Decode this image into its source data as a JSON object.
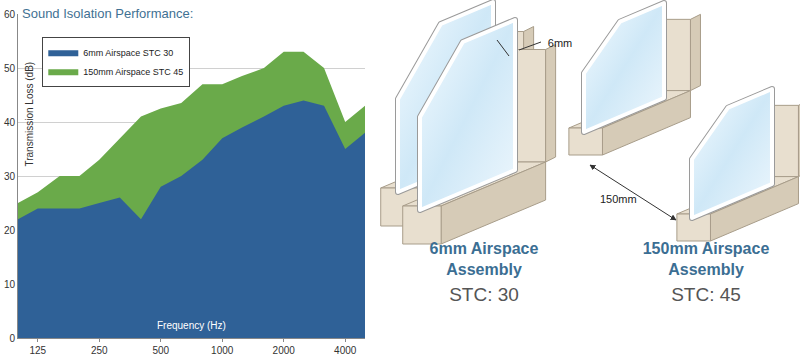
{
  "chart_data": {
    "type": "area",
    "title": "Sound Isolation Performance:",
    "x_label": "Frequency (Hz)",
    "y_label": "Transmission Loss (dB)",
    "x": [
      100,
      125,
      160,
      200,
      250,
      315,
      400,
      500,
      630,
      800,
      1000,
      1250,
      1600,
      2000,
      2500,
      3150,
      4000,
      5000
    ],
    "series": [
      {
        "name": "6mm Airspace STC 30",
        "color": "#2f6197",
        "values": [
          22,
          24,
          24,
          24,
          25,
          26,
          22,
          28,
          30,
          33,
          37,
          39,
          41,
          43,
          44,
          43,
          35,
          38
        ]
      },
      {
        "name": "150mm Airspace STC 45",
        "color": "#6aaa4a",
        "values": [
          25,
          27,
          30,
          30,
          33,
          37,
          41,
          42.5,
          43.5,
          47,
          47,
          48.5,
          50,
          53,
          53,
          50,
          40,
          43
        ]
      }
    ],
    "xlim": [
      100,
      5000
    ],
    "xticks": [
      125,
      250,
      500,
      1000,
      2000,
      4000
    ],
    "ylim": [
      0,
      60
    ],
    "yticks": [
      0,
      10,
      20,
      30,
      40,
      50,
      60
    ],
    "log": "x",
    "grid": true,
    "stacked": false,
    "legend": "upper left"
  },
  "diagram": {
    "assemblies": [
      {
        "gap_label": "6mm",
        "title": [
          "6mm Airspace",
          "Assembly"
        ],
        "stc": "STC: 30"
      },
      {
        "gap_label": "150mm",
        "title": [
          "150mm Airspace",
          "Assembly"
        ],
        "stc": "STC: 45"
      }
    ]
  }
}
